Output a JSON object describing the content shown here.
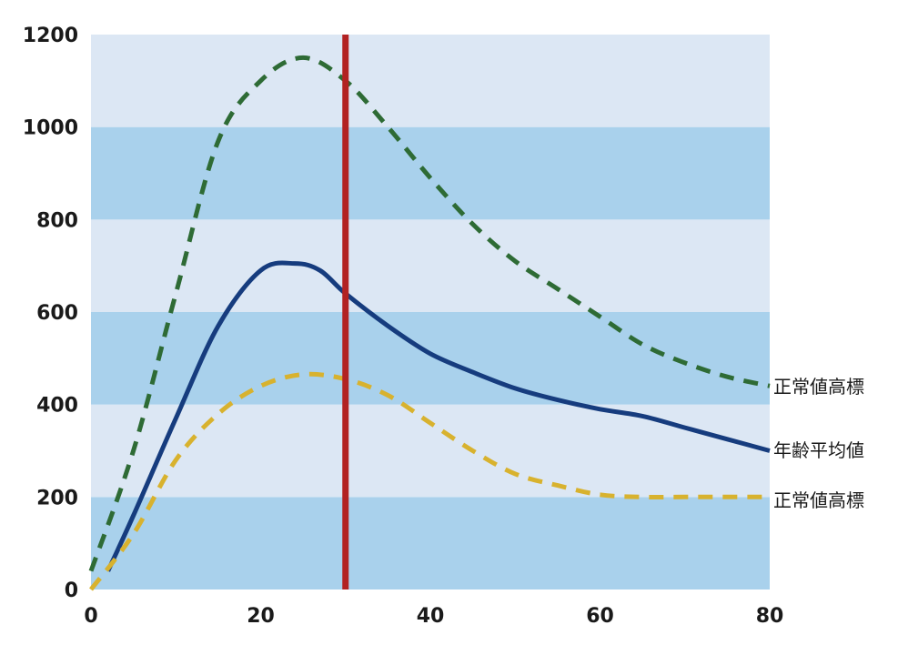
{
  "chart_data": {
    "type": "line",
    "title": "",
    "xlabel": "",
    "ylabel": "",
    "xlim": [
      0,
      80
    ],
    "ylim": [
      0,
      1200
    ],
    "x_ticks": [
      0,
      20,
      40,
      60,
      80
    ],
    "y_ticks": [
      0,
      200,
      400,
      600,
      800,
      1000,
      1200
    ],
    "grid": "alternating horizontal bands every 200",
    "band_colors": [
      "#a9d1ec",
      "#dce7f4"
    ],
    "vertical_marker": {
      "x": 30,
      "color": "#b22222"
    },
    "series": [
      {
        "label": "正常値高標",
        "color": "#2e6b35",
        "style": "dashed",
        "points": [
          [
            0,
            40
          ],
          [
            5,
            300
          ],
          [
            10,
            640
          ],
          [
            15,
            970
          ],
          [
            20,
            1100
          ],
          [
            25,
            1150
          ],
          [
            30,
            1100
          ],
          [
            35,
            1000
          ],
          [
            40,
            890
          ],
          [
            45,
            790
          ],
          [
            50,
            710
          ],
          [
            55,
            650
          ],
          [
            60,
            590
          ],
          [
            65,
            530
          ],
          [
            70,
            490
          ],
          [
            75,
            460
          ],
          [
            80,
            440
          ]
        ]
      },
      {
        "label": "年齢平均値",
        "color": "#163c7e",
        "style": "solid",
        "points": [
          [
            2,
            40
          ],
          [
            5,
            160
          ],
          [
            10,
            370
          ],
          [
            15,
            570
          ],
          [
            20,
            690
          ],
          [
            24,
            705
          ],
          [
            27,
            690
          ],
          [
            30,
            640
          ],
          [
            35,
            570
          ],
          [
            40,
            510
          ],
          [
            45,
            470
          ],
          [
            50,
            435
          ],
          [
            55,
            410
          ],
          [
            60,
            390
          ],
          [
            65,
            375
          ],
          [
            70,
            350
          ],
          [
            75,
            325
          ],
          [
            80,
            300
          ]
        ]
      },
      {
        "label": "正常値高標",
        "color": "#d8b22e",
        "style": "dashed",
        "points": [
          [
            0,
            0
          ],
          [
            5,
            120
          ],
          [
            10,
            280
          ],
          [
            15,
            380
          ],
          [
            20,
            440
          ],
          [
            25,
            465
          ],
          [
            30,
            455
          ],
          [
            35,
            420
          ],
          [
            40,
            360
          ],
          [
            45,
            300
          ],
          [
            50,
            250
          ],
          [
            55,
            225
          ],
          [
            60,
            205
          ],
          [
            65,
            200
          ],
          [
            70,
            200
          ],
          [
            75,
            200
          ],
          [
            80,
            200
          ]
        ]
      }
    ]
  }
}
